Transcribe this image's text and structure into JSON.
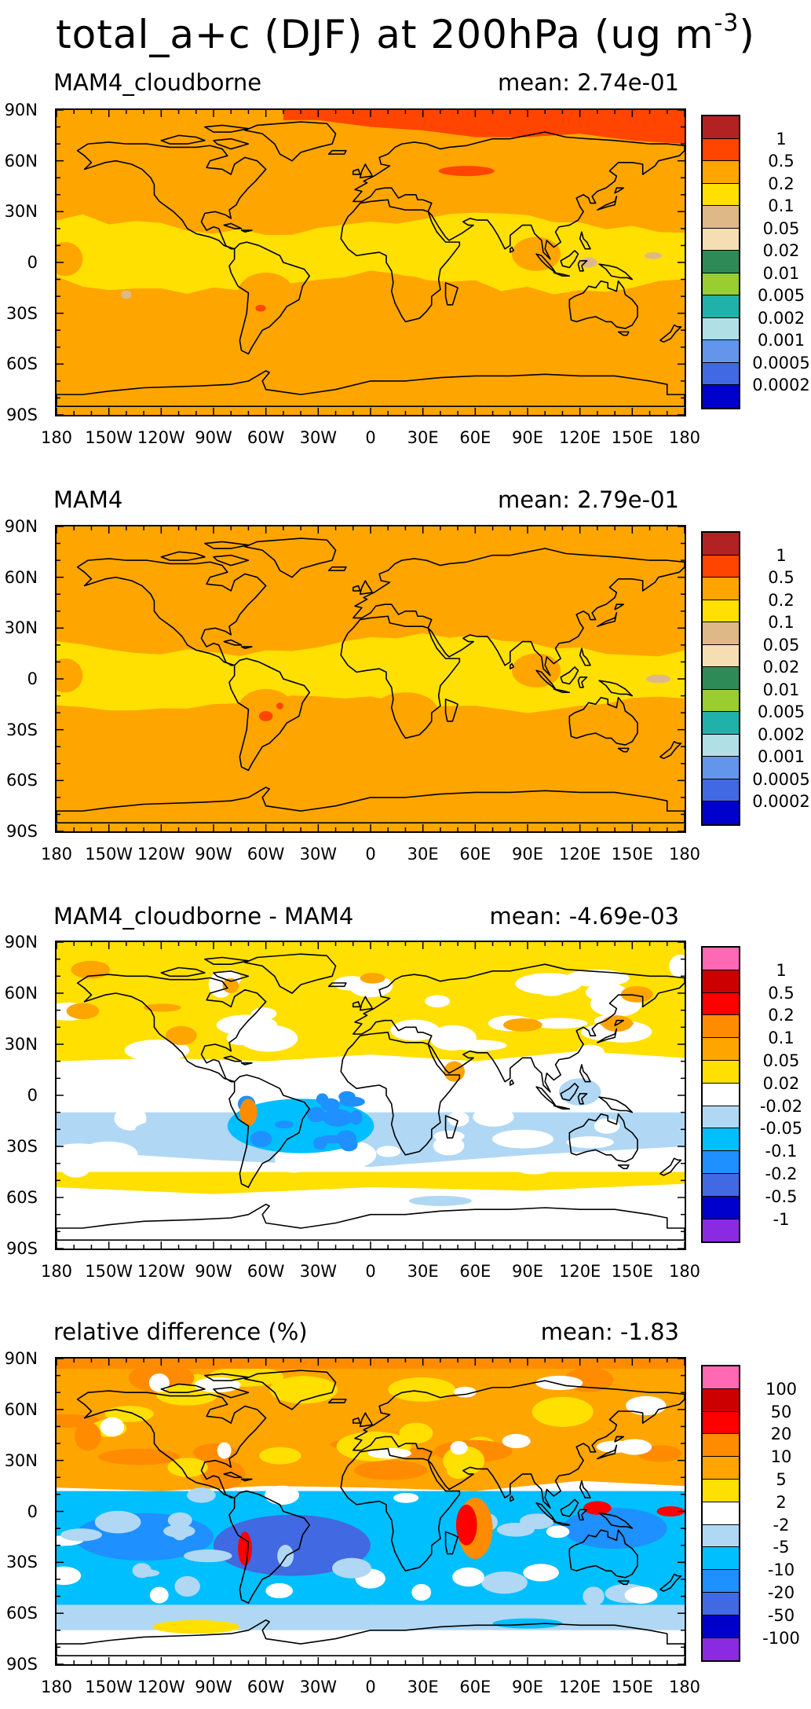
{
  "figure": {
    "title": "total_a+c (DJF) at 200hPa (ug m",
    "title_exponent": "-3",
    "title_close": ")"
  },
  "axes": {
    "lat_ticks": [
      "90N",
      "60N",
      "30N",
      "0",
      "30S",
      "60S",
      "90S"
    ],
    "lon_ticks": [
      "180",
      "150W",
      "120W",
      "90W",
      "60W",
      "30W",
      "0",
      "30E",
      "60E",
      "90E",
      "120E",
      "150E",
      "180"
    ]
  },
  "panels": [
    {
      "title": "MAM4_cloudborne",
      "mean": "mean: 2.74e-01",
      "field": "concentration",
      "background_color": "#FFA500",
      "colorbar": {
        "colors": [
          "#B22222",
          "#FF4500",
          "#FFA500",
          "#FFE000",
          "#DEB887",
          "#F5DEB3",
          "#2E8B57",
          "#9ACD32",
          "#20B2AA",
          "#B0E0E6",
          "#6495ED",
          "#4169E1",
          "#0000CD"
        ],
        "labels": [
          "1",
          "0.5",
          "0.2",
          "0.1",
          "0.05",
          "0.02",
          "0.01",
          "0.005",
          "0.002",
          "0.001",
          "0.0005",
          "0.0002"
        ]
      }
    },
    {
      "title": "MAM4",
      "mean": "mean: 2.79e-01",
      "field": "concentration",
      "background_color": "#FFA500",
      "colorbar": {
        "colors": [
          "#B22222",
          "#FF4500",
          "#FFA500",
          "#FFE000",
          "#DEB887",
          "#F5DEB3",
          "#2E8B57",
          "#9ACD32",
          "#20B2AA",
          "#B0E0E6",
          "#6495ED",
          "#4169E1",
          "#0000CD"
        ],
        "labels": [
          "1",
          "0.5",
          "0.2",
          "0.1",
          "0.05",
          "0.02",
          "0.01",
          "0.005",
          "0.002",
          "0.001",
          "0.0005",
          "0.0002"
        ]
      }
    },
    {
      "title": "MAM4_cloudborne - MAM4",
      "mean": "mean: -4.69e-03",
      "field": "difference",
      "background_color": "#FFFFFF",
      "colorbar": {
        "colors": [
          "#FF69B4",
          "#CD0000",
          "#FF0000",
          "#FF8C00",
          "#FFA500",
          "#FFE000",
          "#FFFFFF",
          "#B0D8F5",
          "#00BFFF",
          "#1E90FF",
          "#4169E1",
          "#0000CD",
          "#8A2BE2"
        ],
        "labels": [
          "1",
          "0.5",
          "0.2",
          "0.1",
          "0.05",
          "0.02",
          "-0.02",
          "-0.05",
          "-0.1",
          "-0.2",
          "-0.5",
          "-1"
        ]
      }
    },
    {
      "title": "relative difference (%)",
      "mean": "mean: -1.83",
      "field": "relative",
      "background_color": "#FFFFFF",
      "colorbar": {
        "colors": [
          "#FF69B4",
          "#CD0000",
          "#FF0000",
          "#FF8C00",
          "#FFA500",
          "#FFE000",
          "#FFFFFF",
          "#B0D8F5",
          "#00BFFF",
          "#1E90FF",
          "#4169E1",
          "#0000CD",
          "#8A2BE2"
        ],
        "labels": [
          "100",
          "50",
          "20",
          "10",
          "5",
          "2",
          "-2",
          "-5",
          "-10",
          "-20",
          "-50",
          "-100"
        ]
      }
    }
  ]
}
